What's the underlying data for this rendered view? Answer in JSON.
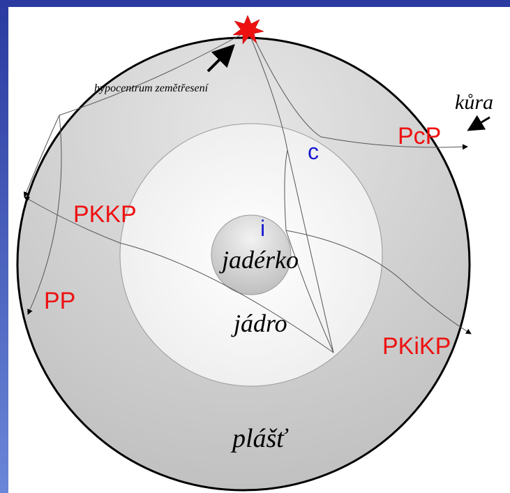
{
  "labels": {
    "hypocenter": "hypocentrum zemětřesení",
    "crust": "kůra",
    "pcp": "PcP",
    "c": "c",
    "pkkp": "PKKP",
    "i": "i",
    "inner_core": "jadérko",
    "pp": "PP",
    "outer_core": "jádro",
    "pkikp": "PKiKP",
    "mantle": "plášť"
  }
}
